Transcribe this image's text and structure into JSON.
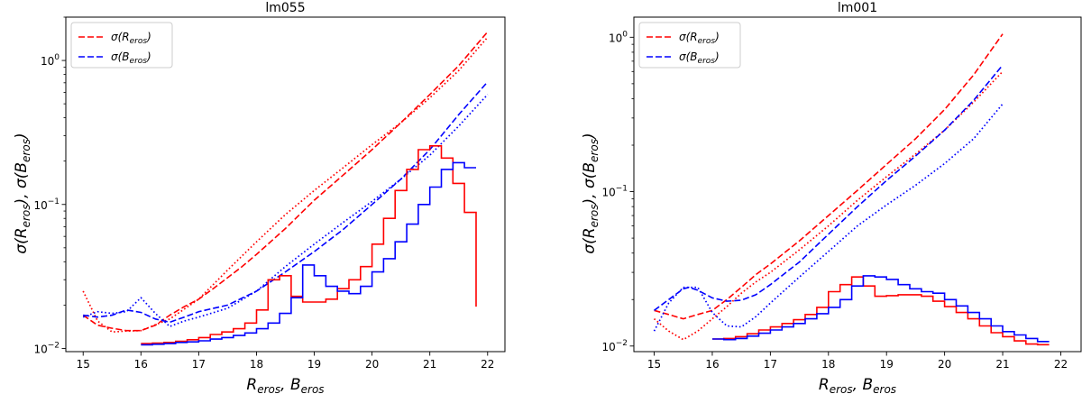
{
  "chart_data": [
    {
      "type": "line",
      "title": "lm055",
      "xlabel": "R_eros, B_eros",
      "xlabel_parts": [
        "R",
        "eros",
        ",  ",
        "B",
        "eros"
      ],
      "ylabel": "σ(R_eros), σ(B_eros)",
      "ylabel_parts": [
        "σ(R",
        "eros",
        "),  σ(B",
        "eros",
        ")"
      ],
      "yscale": "log",
      "xlim": [
        14.7,
        22.3
      ],
      "ylim": [
        0.0095,
        2.0
      ],
      "xticks": [
        "15",
        "16",
        "17",
        "18",
        "19",
        "20",
        "21",
        "22"
      ],
      "yticks": [
        {
          "value": 0.01,
          "base": "10",
          "exp": "−2"
        },
        {
          "value": 0.1,
          "base": "10",
          "exp": "−1"
        },
        {
          "value": 1,
          "base": "10",
          "exp": "0"
        }
      ],
      "legend_position": "top-left",
      "legend": [
        {
          "main": "σ(R",
          "sub": "eros",
          "end": ")",
          "color": "#ff0000"
        },
        {
          "main": "σ(B",
          "sub": "eros",
          "end": ")",
          "color": "#0000ff"
        }
      ],
      "series": [
        {
          "name": "σ(R_eros) dashed",
          "color": "#ff0000",
          "style": "dashed",
          "x": [
            15.0,
            15.25,
            15.5,
            15.75,
            16.0,
            16.25,
            16.5,
            16.75,
            17.0,
            17.25,
            17.5,
            17.75,
            18.0,
            18.5,
            19.0,
            19.5,
            20.0,
            20.5,
            21.0,
            21.5,
            22.0
          ],
          "y": [
            0.017,
            0.0145,
            0.0138,
            0.0133,
            0.0133,
            0.0145,
            0.017,
            0.0195,
            0.022,
            0.026,
            0.031,
            0.037,
            0.045,
            0.068,
            0.107,
            0.16,
            0.24,
            0.37,
            0.58,
            0.92,
            1.58
          ]
        },
        {
          "name": "σ(R_eros) dotted",
          "color": "#ff0000",
          "style": "dotted",
          "x": [
            15.0,
            15.25,
            15.5,
            15.75,
            16.0,
            16.5,
            17.0,
            17.5,
            18.0,
            18.5,
            19.0,
            19.5,
            20.0,
            20.5,
            21.0,
            21.5,
            22.0
          ],
          "y": [
            0.025,
            0.0155,
            0.013,
            0.0132,
            0.0133,
            0.016,
            0.022,
            0.035,
            0.055,
            0.085,
            0.125,
            0.18,
            0.26,
            0.37,
            0.55,
            0.85,
            1.45
          ]
        },
        {
          "name": "σ(B_eros) dashed",
          "color": "#0000ff",
          "style": "dashed",
          "x": [
            15.0,
            15.25,
            15.5,
            15.75,
            16.0,
            16.25,
            16.5,
            16.75,
            17.0,
            17.5,
            18.0,
            18.5,
            19.0,
            19.5,
            20.0,
            20.5,
            21.0,
            21.5,
            22.0
          ],
          "y": [
            0.017,
            0.0165,
            0.017,
            0.0185,
            0.0178,
            0.016,
            0.0152,
            0.0165,
            0.018,
            0.02,
            0.025,
            0.034,
            0.047,
            0.067,
            0.1,
            0.15,
            0.24,
            0.42,
            0.71
          ]
        },
        {
          "name": "σ(B_eros) dotted",
          "color": "#0000ff",
          "style": "dotted",
          "x": [
            15.0,
            15.25,
            15.5,
            15.75,
            16.0,
            16.25,
            16.5,
            16.75,
            17.0,
            17.5,
            18.0,
            18.5,
            19.0,
            19.5,
            20.0,
            20.5,
            21.0,
            21.5,
            22.0
          ],
          "y": [
            0.0165,
            0.018,
            0.0175,
            0.018,
            0.0225,
            0.0175,
            0.0142,
            0.0155,
            0.0165,
            0.019,
            0.025,
            0.037,
            0.053,
            0.075,
            0.105,
            0.15,
            0.22,
            0.35,
            0.58
          ]
        }
      ],
      "histograms": [
        {
          "name": "R_eros histogram",
          "color": "#ff0000",
          "edges": [
            16.0,
            16.2,
            16.4,
            16.6,
            16.8,
            17.0,
            17.2,
            17.4,
            17.6,
            17.8,
            18.0,
            18.2,
            18.4,
            18.6,
            18.8,
            19.0,
            19.2,
            19.4,
            19.6,
            19.8,
            20.0,
            20.2,
            20.4,
            20.6,
            20.8,
            21.0,
            21.2,
            21.4,
            21.6,
            21.8
          ],
          "values": [
            0.0108,
            0.0109,
            0.011,
            0.0112,
            0.0115,
            0.0119,
            0.0125,
            0.013,
            0.0137,
            0.015,
            0.0185,
            0.03,
            0.032,
            0.023,
            0.021,
            0.021,
            0.022,
            0.026,
            0.03,
            0.037,
            0.053,
            0.08,
            0.125,
            0.175,
            0.24,
            0.255,
            0.21,
            0.14,
            0.088
          ],
          "end_value": 0.0195
        },
        {
          "name": "B_eros histogram",
          "color": "#0000ff",
          "edges": [
            16.0,
            16.2,
            16.4,
            16.6,
            16.8,
            17.0,
            17.2,
            17.4,
            17.6,
            17.8,
            18.0,
            18.2,
            18.4,
            18.6,
            18.8,
            19.0,
            19.2,
            19.4,
            19.6,
            19.8,
            20.0,
            20.2,
            20.4,
            20.6,
            20.8,
            21.0,
            21.2,
            21.4,
            21.6,
            21.8
          ],
          "values": [
            0.0106,
            0.0107,
            0.0108,
            0.011,
            0.0111,
            0.0113,
            0.0116,
            0.0119,
            0.0123,
            0.0128,
            0.0137,
            0.015,
            0.0175,
            0.0225,
            0.038,
            0.032,
            0.027,
            0.025,
            0.024,
            0.027,
            0.034,
            0.042,
            0.055,
            0.073,
            0.1,
            0.132,
            0.175,
            0.195,
            0.18
          ]
        }
      ]
    },
    {
      "type": "line",
      "title": "lm001",
      "xlabel": "R_eros, B_eros",
      "xlabel_parts": [
        "R",
        "eros",
        ",  ",
        "B",
        "eros"
      ],
      "ylabel": "σ(R_eros), σ(B_eros)",
      "ylabel_parts": [
        "σ(R",
        "eros",
        "),  σ(B",
        "eros",
        ")"
      ],
      "yscale": "log",
      "xlim": [
        14.65,
        22.35
      ],
      "ylim": [
        0.0092,
        1.35
      ],
      "xticks": [
        "15",
        "16",
        "17",
        "18",
        "19",
        "20",
        "21",
        "22"
      ],
      "yticks": [
        {
          "value": 0.01,
          "base": "10",
          "exp": "−2"
        },
        {
          "value": 0.1,
          "base": "10",
          "exp": "−1"
        },
        {
          "value": 1,
          "base": "10",
          "exp": "0"
        }
      ],
      "legend_position": "top-left",
      "legend": [
        {
          "main": "σ(R",
          "sub": "eros",
          "end": ")",
          "color": "#ff0000"
        },
        {
          "main": "σ(B",
          "sub": "eros",
          "end": ")",
          "color": "#0000ff"
        }
      ],
      "series": [
        {
          "name": "σ(R_eros) dashed",
          "color": "#ff0000",
          "style": "dashed",
          "x": [
            15.0,
            15.25,
            15.5,
            15.75,
            16.0,
            16.25,
            16.5,
            16.75,
            17.0,
            17.5,
            18.0,
            18.5,
            19.0,
            19.5,
            20.0,
            20.5,
            21.0
          ],
          "y": [
            0.017,
            0.016,
            0.015,
            0.016,
            0.017,
            0.02,
            0.024,
            0.029,
            0.034,
            0.048,
            0.07,
            0.102,
            0.15,
            0.22,
            0.34,
            0.57,
            1.05
          ]
        },
        {
          "name": "σ(R_eros) dotted",
          "color": "#ff0000",
          "style": "dotted",
          "x": [
            15.0,
            15.25,
            15.5,
            15.75,
            16.0,
            16.25,
            16.5,
            16.75,
            17.0,
            17.5,
            18.0,
            18.5,
            19.0,
            19.5,
            20.0,
            20.5,
            21.0
          ],
          "y": [
            0.015,
            0.0125,
            0.011,
            0.0125,
            0.015,
            0.018,
            0.022,
            0.026,
            0.03,
            0.042,
            0.06,
            0.088,
            0.125,
            0.175,
            0.25,
            0.38,
            0.6
          ]
        },
        {
          "name": "σ(B_eros) dashed",
          "color": "#0000ff",
          "style": "dashed",
          "x": [
            15.0,
            15.25,
            15.5,
            15.6,
            15.75,
            16.0,
            16.25,
            16.5,
            16.75,
            17.0,
            17.5,
            18.0,
            18.5,
            19.0,
            19.5,
            20.0,
            20.5,
            21.0
          ],
          "y": [
            0.017,
            0.02,
            0.0235,
            0.024,
            0.023,
            0.0205,
            0.0195,
            0.0198,
            0.0215,
            0.025,
            0.035,
            0.053,
            0.08,
            0.118,
            0.17,
            0.25,
            0.39,
            0.66
          ]
        },
        {
          "name": "σ(B_eros) dotted",
          "color": "#0000ff",
          "style": "dotted",
          "x": [
            15.0,
            15.25,
            15.5,
            15.75,
            16.0,
            16.25,
            16.5,
            16.75,
            17.0,
            17.5,
            18.0,
            18.5,
            19.0,
            19.5,
            20.0,
            20.5,
            21.0
          ],
          "y": [
            0.0125,
            0.019,
            0.024,
            0.024,
            0.0165,
            0.0135,
            0.0133,
            0.0155,
            0.019,
            0.028,
            0.041,
            0.06,
            0.082,
            0.11,
            0.152,
            0.22,
            0.37
          ]
        }
      ],
      "histograms": [
        {
          "name": "R_eros histogram",
          "color": "#ff0000",
          "edges": [
            16.0,
            16.2,
            16.4,
            16.6,
            16.8,
            17.0,
            17.2,
            17.4,
            17.6,
            17.8,
            18.0,
            18.2,
            18.4,
            18.6,
            18.8,
            19.0,
            19.2,
            19.4,
            19.6,
            19.8,
            20.0,
            20.2,
            20.4,
            20.6,
            20.8,
            21.0,
            21.2,
            21.4,
            21.6,
            21.8
          ],
          "values": [
            0.0111,
            0.0112,
            0.0115,
            0.012,
            0.0127,
            0.0133,
            0.014,
            0.0148,
            0.016,
            0.0178,
            0.0225,
            0.025,
            0.028,
            0.0245,
            0.021,
            0.0212,
            0.0215,
            0.0215,
            0.021,
            0.0195,
            0.018,
            0.0165,
            0.015,
            0.0135,
            0.0122,
            0.0115,
            0.0108,
            0.0103,
            0.0102
          ]
        },
        {
          "name": "B_eros histogram",
          "color": "#0000ff",
          "edges": [
            16.0,
            16.2,
            16.4,
            16.6,
            16.8,
            17.0,
            17.2,
            17.4,
            17.6,
            17.8,
            18.0,
            18.2,
            18.4,
            18.6,
            18.8,
            19.0,
            19.2,
            19.4,
            19.6,
            19.8,
            20.0,
            20.2,
            20.4,
            20.6,
            20.8,
            21.0,
            21.2,
            21.4,
            21.6,
            21.8
          ],
          "values": [
            0.0111,
            0.011,
            0.0112,
            0.0116,
            0.0121,
            0.0127,
            0.0133,
            0.014,
            0.015,
            0.0162,
            0.0178,
            0.02,
            0.0245,
            0.0285,
            0.028,
            0.027,
            0.025,
            0.0235,
            0.0225,
            0.022,
            0.02,
            0.0182,
            0.0165,
            0.015,
            0.0135,
            0.0124,
            0.0118,
            0.0112,
            0.0107
          ]
        }
      ]
    }
  ]
}
